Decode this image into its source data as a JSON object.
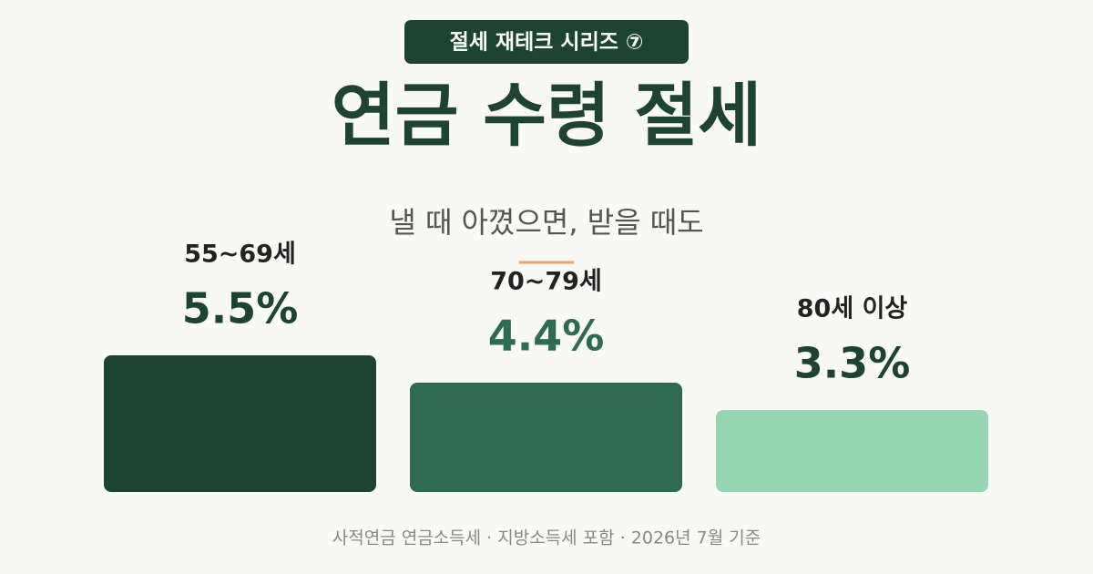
{
  "header": {
    "badge": "절세 재테크 시리즈 ⑦"
  },
  "chart_data": {
    "type": "bar",
    "title": "연금 수령 절세",
    "subtitle": "낼 때 아꼈으면, 받을 때도",
    "categories": [
      "55~69세",
      "70~79세",
      "80세 이상"
    ],
    "values": [
      5.5,
      4.4,
      3.3
    ],
    "value_labels": [
      "5.5%",
      "4.4%",
      "3.3%"
    ],
    "colors": [
      "#1d4430",
      "#2e6b50",
      "#95d5b2"
    ],
    "value_label_colors": [
      "#1d4430",
      "#2e6b50",
      "#1d4430"
    ]
  },
  "footer": {
    "note": "사적연금 연금소득세 · 지방소득세 포함 · 2026년 7월 기준"
  }
}
